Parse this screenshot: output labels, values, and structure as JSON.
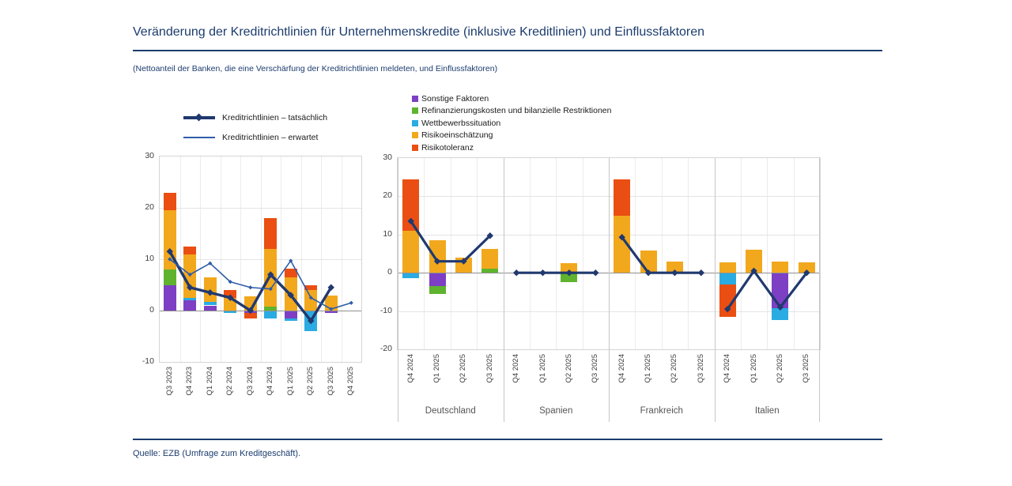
{
  "page": {
    "title": "Veränderung der Kreditrichtlinien für Unternehmenskredite (inklusive Kreditlinien) und Einflussfaktoren",
    "subtitle": "(Nettoanteil der Banken, die eine Verschärfung der Kreditrichtlinien meldeten, und Einflussfaktoren)",
    "source": "Quelle: EZB (Umfrage zum Kreditgeschäft)."
  },
  "colors": {
    "navy": "#1C3C6E",
    "line_actual": "#20396F",
    "line_expected": "#2F5DA8",
    "purple": "#7D3FC4",
    "green": "#5FB32E",
    "cyan": "#2AABE2",
    "yellow": "#F2A81D",
    "red": "#EA4E12"
  },
  "chart_data": [
    {
      "type": "bar",
      "subtype": "stacked-bars-with-lines",
      "region": "Euroraum (links)",
      "ylim": [
        -10,
        30
      ],
      "yticks": [
        30,
        20,
        10,
        0,
        -10
      ],
      "categories": [
        "Q3 2023",
        "Q4 2023",
        "Q1 2024",
        "Q2 2024",
        "Q3 2024",
        "Q4 2024",
        "Q1 2025",
        "Q2 2025",
        "Q3 2025",
        "Q4 2025"
      ],
      "bars": [
        {
          "pos": [
            [
              "purple",
              5
            ],
            [
              "green",
              3
            ],
            [
              "yellow",
              11.5
            ],
            [
              "red",
              3.5
            ]
          ],
          "neg": []
        },
        {
          "pos": [
            [
              "purple",
              2
            ],
            [
              "cyan",
              0.5
            ],
            [
              "yellow",
              8.5
            ],
            [
              "red",
              1.5
            ]
          ],
          "neg": []
        },
        {
          "pos": [
            [
              "purple",
              1
            ],
            [
              "cyan",
              0.7
            ],
            [
              "yellow",
              4.8
            ]
          ],
          "neg": []
        },
        {
          "pos": [
            [
              "yellow",
              2.5
            ],
            [
              "red",
              1.5
            ]
          ],
          "neg": [
            [
              "cyan",
              0.5
            ]
          ]
        },
        {
          "pos": [
            [
              "yellow",
              2.8
            ]
          ],
          "neg": [
            [
              "purple",
              0.5
            ],
            [
              "red",
              1.0
            ]
          ]
        },
        {
          "pos": [
            [
              "green",
              0.7
            ],
            [
              "yellow",
              11.3
            ],
            [
              "red",
              6
            ]
          ],
          "neg": [
            [
              "cyan",
              1.5
            ]
          ]
        },
        {
          "pos": [
            [
              "yellow",
              6.5
            ],
            [
              "red",
              1.7
            ]
          ],
          "neg": [
            [
              "purple",
              1.5
            ],
            [
              "cyan",
              0.5
            ]
          ]
        },
        {
          "pos": [
            [
              "yellow",
              4
            ],
            [
              "red",
              1
            ]
          ],
          "neg": [
            [
              "cyan",
              4
            ]
          ]
        },
        {
          "pos": [
            [
              "yellow",
              3
            ]
          ],
          "neg": [
            [
              "purple",
              0.5
            ]
          ]
        },
        {
          "pos": [],
          "neg": []
        }
      ],
      "lines": [
        {
          "name": "Kreditrichtlinien – tatsächlich",
          "style": "thick",
          "color": "line_actual",
          "values": [
            11.5,
            4.5,
            3.5,
            2.5,
            0,
            7,
            3,
            -2,
            4.5,
            null
          ]
        },
        {
          "name": "Kreditrichtlinien – erwartet",
          "style": "thin",
          "color": "line_expected",
          "values": [
            10,
            7,
            9.2,
            5.6,
            4.5,
            4.2,
            9.7,
            2.5,
            0.3,
            1.5
          ]
        }
      ]
    },
    {
      "type": "bar",
      "subtype": "grouped-stacked-bars-with-line",
      "ylim": [
        -20,
        30
      ],
      "yticks": [
        30,
        20,
        10,
        0,
        -10,
        -20
      ],
      "legend": [
        {
          "label": "Sonstige Faktoren",
          "color": "purple"
        },
        {
          "label": "Refinanzierungskosten und bilanzielle Restriktionen",
          "color": "green"
        },
        {
          "label": "Wettbewerbssituation",
          "color": "cyan"
        },
        {
          "label": "Risikoeinschätzung",
          "color": "yellow"
        },
        {
          "label": "Risikotoleranz",
          "color": "red"
        }
      ],
      "line_name": "Kreditrichtlinien – tatsächlich",
      "groups": [
        {
          "label": "Deutschland",
          "categories": [
            "Q4 2024",
            "Q1 2025",
            "Q2 2025",
            "Q3 2025"
          ],
          "bars": [
            {
              "pos": [
                [
                  "yellow",
                  11
                ],
                [
                  "red",
                  13.5
                ]
              ],
              "neg": [
                [
                  "cyan",
                  1.5
                ]
              ]
            },
            {
              "pos": [
                [
                  "yellow",
                  8.5
                ]
              ],
              "neg": [
                [
                  "purple",
                  3.5
                ],
                [
                  "green",
                  2
                ]
              ]
            },
            {
              "pos": [
                [
                  "yellow",
                  4
                ]
              ],
              "neg": []
            },
            {
              "pos": [
                [
                  "green",
                  1
                ],
                [
                  "yellow",
                  5.3
                ]
              ],
              "neg": []
            }
          ],
          "line": [
            13.5,
            3,
            3,
            9.7
          ]
        },
        {
          "label": "Spanien",
          "categories": [
            "Q4 2024",
            "Q1 2025",
            "Q2 2025",
            "Q3 2025"
          ],
          "bars": [
            {
              "pos": [],
              "neg": []
            },
            {
              "pos": [],
              "neg": []
            },
            {
              "pos": [
                [
                  "yellow",
                  2.5
                ]
              ],
              "neg": [
                [
                  "green",
                  2.5
                ]
              ]
            },
            {
              "pos": [],
              "neg": []
            }
          ],
          "line": [
            0,
            0,
            0,
            0
          ]
        },
        {
          "label": "Frankreich",
          "categories": [
            "Q4 2024",
            "Q1 2025",
            "Q2 2025",
            "Q3 2025"
          ],
          "bars": [
            {
              "pos": [
                [
                  "yellow",
                  15
                ],
                [
                  "red",
                  9.5
                ]
              ],
              "neg": []
            },
            {
              "pos": [
                [
                  "yellow",
                  5.8
                ]
              ],
              "neg": []
            },
            {
              "pos": [
                [
                  "yellow",
                  3
                ]
              ],
              "neg": []
            },
            {
              "pos": [],
              "neg": []
            }
          ],
          "line": [
            9.3,
            0,
            0,
            0
          ]
        },
        {
          "label": "Italien",
          "categories": [
            "Q4 2024",
            "Q1 2025",
            "Q2 2025",
            "Q3 2025"
          ],
          "bars": [
            {
              "pos": [
                [
                  "yellow",
                  2.7
                ]
              ],
              "neg": [
                [
                  "cyan",
                  3
                ],
                [
                  "red",
                  8.5
                ]
              ]
            },
            {
              "pos": [
                [
                  "yellow",
                  6
                ]
              ],
              "neg": []
            },
            {
              "pos": [
                [
                  "yellow",
                  3
                ]
              ],
              "neg": [
                [
                  "purple",
                  9.3
                ],
                [
                  "cyan",
                  3
                ]
              ]
            },
            {
              "pos": [
                [
                  "yellow",
                  2.7
                ]
              ],
              "neg": []
            }
          ],
          "line": [
            -9.5,
            0.5,
            -9,
            0
          ]
        }
      ]
    }
  ]
}
